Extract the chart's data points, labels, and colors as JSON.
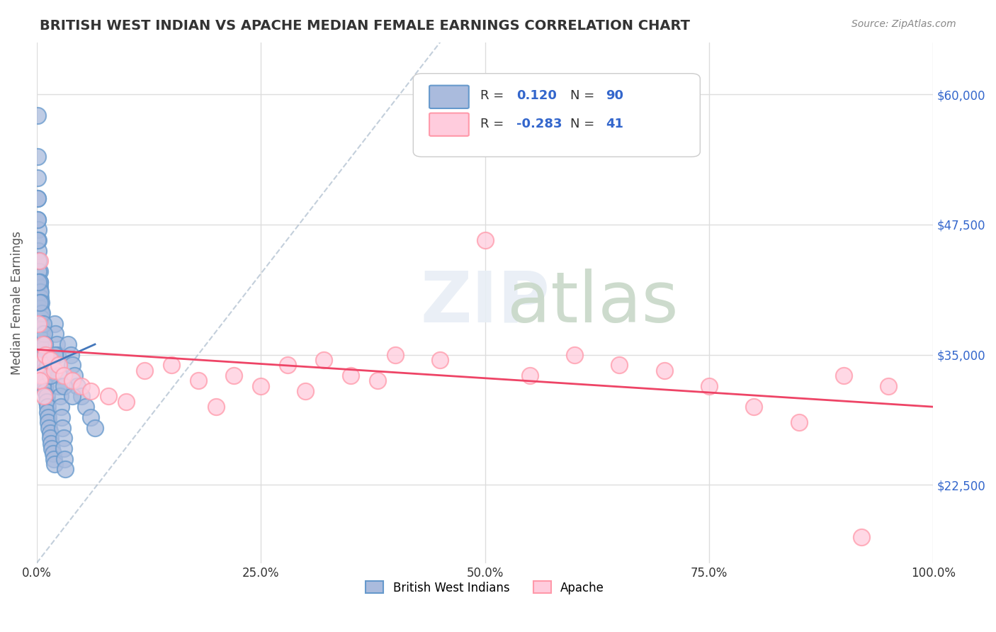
{
  "title": "BRITISH WEST INDIAN VS APACHE MEDIAN FEMALE EARNINGS CORRELATION CHART",
  "source": "Source: ZipAtlas.com",
  "xlabel": "",
  "ylabel": "Median Female Earnings",
  "xlim": [
    0,
    1.0
  ],
  "ylim": [
    15000,
    65000
  ],
  "xticks": [
    0,
    0.25,
    0.5,
    0.75,
    1.0
  ],
  "xticklabels": [
    "0.0%",
    "25.0%",
    "50.0%",
    "75.0%",
    "100.0%"
  ],
  "yticks": [
    22500,
    35000,
    47500,
    60000
  ],
  "yticklabels": [
    "$22,500",
    "$35,000",
    "$47,500",
    "$60,000"
  ],
  "background_color": "#ffffff",
  "grid_color": "#dddddd",
  "watermark": "ZIPatlas",
  "legend_r1": "R =  0.120",
  "legend_n1": "N = 90",
  "legend_r2": "R = -0.283",
  "legend_n2": "N =  41",
  "blue_color": "#6699cc",
  "pink_color": "#ff99aa",
  "blue_fill": "#aabbdd",
  "pink_fill": "#ffccdd",
  "blue_scatter_x": [
    0.001,
    0.001,
    0.001,
    0.001,
    0.001,
    0.002,
    0.002,
    0.002,
    0.002,
    0.003,
    0.003,
    0.003,
    0.003,
    0.004,
    0.004,
    0.004,
    0.005,
    0.005,
    0.005,
    0.006,
    0.006,
    0.006,
    0.007,
    0.007,
    0.008,
    0.008,
    0.009,
    0.009,
    0.01,
    0.01,
    0.01,
    0.01,
    0.011,
    0.011,
    0.012,
    0.012,
    0.013,
    0.013,
    0.014,
    0.015,
    0.015,
    0.016,
    0.017,
    0.018,
    0.019,
    0.02,
    0.02,
    0.021,
    0.022,
    0.023,
    0.024,
    0.025,
    0.025,
    0.026,
    0.027,
    0.028,
    0.029,
    0.03,
    0.03,
    0.031,
    0.032,
    0.035,
    0.038,
    0.04,
    0.042,
    0.045,
    0.05,
    0.055,
    0.06,
    0.065,
    0.002,
    0.003,
    0.004,
    0.005,
    0.006,
    0.007,
    0.008,
    0.009,
    0.01,
    0.012,
    0.001,
    0.001,
    0.001,
    0.002,
    0.002,
    0.003,
    0.02,
    0.015,
    0.03,
    0.04
  ],
  "blue_scatter_y": [
    58000,
    54000,
    52000,
    50000,
    48000,
    47000,
    46000,
    45000,
    44000,
    43000,
    42000,
    41500,
    41000,
    40500,
    40000,
    39500,
    39000,
    38500,
    38000,
    37500,
    37000,
    36500,
    36000,
    35500,
    35000,
    34500,
    34000,
    33500,
    33000,
    32500,
    32000,
    31500,
    31000,
    30500,
    30000,
    29500,
    29000,
    28500,
    28000,
    27500,
    27000,
    26500,
    26000,
    25500,
    25000,
    24500,
    38000,
    37000,
    36000,
    35000,
    34000,
    33000,
    32000,
    31000,
    30000,
    29000,
    28000,
    27000,
    26000,
    25000,
    24000,
    36000,
    35000,
    34000,
    33000,
    32000,
    31000,
    30000,
    29000,
    28000,
    43000,
    42000,
    41000,
    40000,
    39000,
    38000,
    37000,
    36000,
    35000,
    34000,
    50000,
    48000,
    46000,
    44000,
    42000,
    40000,
    35000,
    33000,
    32000,
    31000
  ],
  "pink_scatter_x": [
    0.001,
    0.002,
    0.003,
    0.005,
    0.007,
    0.01,
    0.015,
    0.02,
    0.025,
    0.03,
    0.04,
    0.05,
    0.06,
    0.08,
    0.1,
    0.12,
    0.15,
    0.18,
    0.2,
    0.22,
    0.25,
    0.28,
    0.3,
    0.32,
    0.35,
    0.38,
    0.4,
    0.45,
    0.5,
    0.55,
    0.6,
    0.65,
    0.7,
    0.75,
    0.8,
    0.85,
    0.9,
    0.92,
    0.95,
    0.003,
    0.008
  ],
  "pink_scatter_y": [
    34000,
    38000,
    44000,
    33000,
    36000,
    35000,
    34500,
    33500,
    34000,
    33000,
    32500,
    32000,
    31500,
    31000,
    30500,
    33500,
    34000,
    32500,
    30000,
    33000,
    32000,
    34000,
    31500,
    34500,
    33000,
    32500,
    35000,
    34500,
    46000,
    33000,
    35000,
    34000,
    33500,
    32000,
    30000,
    28500,
    33000,
    17500,
    32000,
    32500,
    31000
  ],
  "blue_trend_x": [
    0,
    0.065
  ],
  "blue_trend_y": [
    33500,
    36000
  ],
  "pink_trend_x": [
    0,
    1.0
  ],
  "pink_trend_y": [
    35500,
    30000
  ],
  "diag_line_x": [
    0,
    0.45
  ],
  "diag_line_y": [
    15000,
    65000
  ]
}
